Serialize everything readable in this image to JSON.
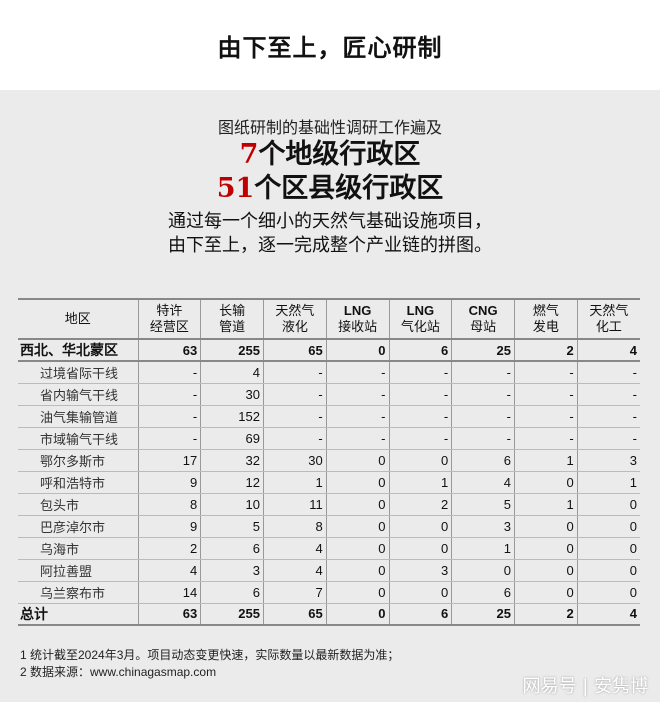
{
  "title": "由下至上，匠心研制",
  "intro": {
    "sub": "图纸研制的基础性调研工作遍及",
    "line1_num": "7",
    "line1_text": "个地级行政区",
    "line2_num": "51",
    "line2_text": "个区县级行政区",
    "desc1": "通过每一个细小的天然气基础设施项目，",
    "desc2": "由下至上，逐一完成整个产业链的拼图。"
  },
  "table": {
    "headers": [
      [
        "地区",
        ""
      ],
      [
        "特许",
        "经营区"
      ],
      [
        "长输",
        "管道"
      ],
      [
        "天然气",
        "液化"
      ],
      [
        "LNG",
        "接收站"
      ],
      [
        "LNG",
        "气化站"
      ],
      [
        "CNG",
        "母站"
      ],
      [
        "燃气",
        "发电"
      ],
      [
        "天然气",
        "化工"
      ]
    ],
    "rows": [
      {
        "bold": true,
        "cells": [
          "西北、华北蒙区",
          "63",
          "255",
          "65",
          "0",
          "6",
          "25",
          "2",
          "4"
        ]
      },
      {
        "cells": [
          "过境省际干线",
          "-",
          "4",
          "-",
          "-",
          "-",
          "-",
          "-",
          "-"
        ]
      },
      {
        "cells": [
          "省内输气干线",
          "-",
          "30",
          "-",
          "-",
          "-",
          "-",
          "-",
          "-"
        ]
      },
      {
        "cells": [
          "油气集输管道",
          "-",
          "152",
          "-",
          "-",
          "-",
          "-",
          "-",
          "-"
        ]
      },
      {
        "cells": [
          "市域输气干线",
          "-",
          "69",
          "-",
          "-",
          "-",
          "-",
          "-",
          "-"
        ]
      },
      {
        "cells": [
          "鄂尔多斯市",
          "17",
          "32",
          "30",
          "0",
          "0",
          "6",
          "1",
          "3"
        ]
      },
      {
        "cells": [
          "呼和浩特市",
          "9",
          "12",
          "1",
          "0",
          "1",
          "4",
          "0",
          "1"
        ]
      },
      {
        "cells": [
          "包头市",
          "8",
          "10",
          "11",
          "0",
          "2",
          "5",
          "1",
          "0"
        ]
      },
      {
        "cells": [
          "巴彦淖尔市",
          "9",
          "5",
          "8",
          "0",
          "0",
          "3",
          "0",
          "0"
        ]
      },
      {
        "cells": [
          "乌海市",
          "2",
          "6",
          "4",
          "0",
          "0",
          "1",
          "0",
          "0"
        ]
      },
      {
        "cells": [
          "阿拉善盟",
          "4",
          "3",
          "4",
          "0",
          "3",
          "0",
          "0",
          "0"
        ]
      },
      {
        "cells": [
          "乌兰察布市",
          "14",
          "6",
          "7",
          "0",
          "0",
          "6",
          "0",
          "0"
        ]
      },
      {
        "bold": true,
        "cells": [
          "总计",
          "63",
          "255",
          "65",
          "0",
          "6",
          "25",
          "2",
          "4"
        ]
      }
    ]
  },
  "notes": [
    "1 统计截至2024年3月。项目动态变更快速，实际数量以最新数据为准；",
    "2 数据来源：www.chinagasmap.com"
  ],
  "watermark": "网易号 | 安隽博"
}
